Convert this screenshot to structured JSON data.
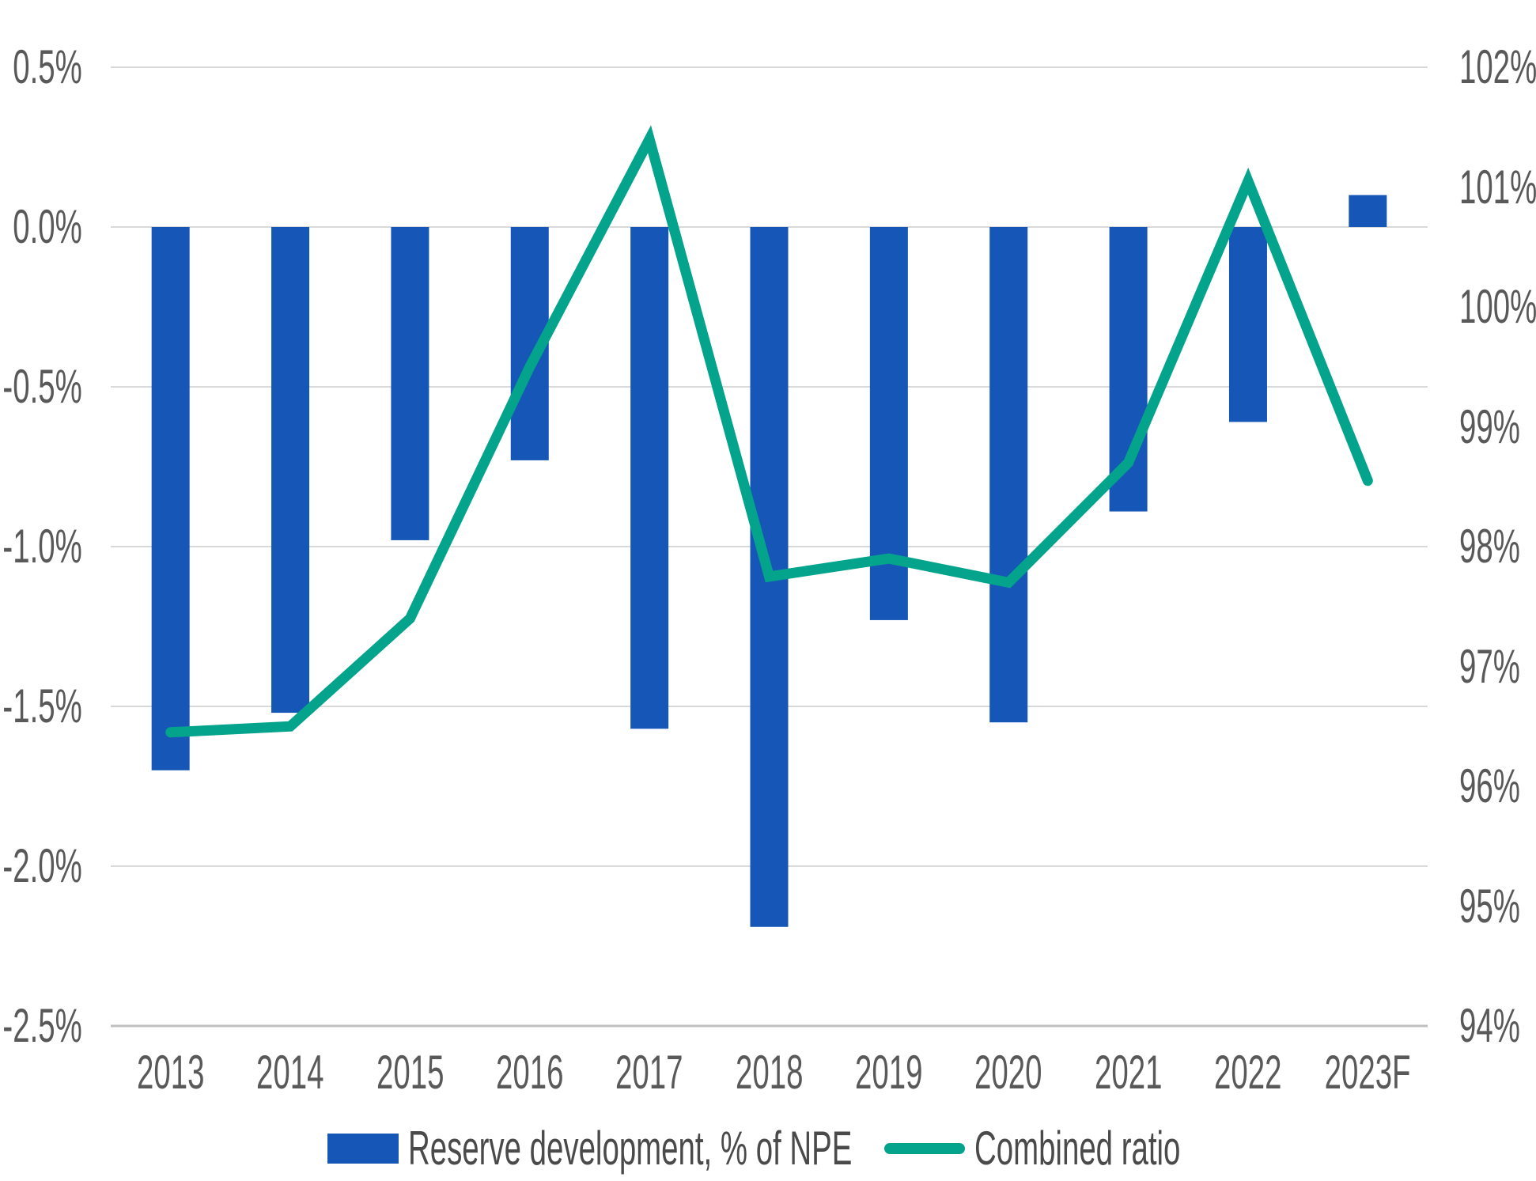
{
  "chart_data": {
    "type": "combo-bar-line",
    "categories": [
      "2013",
      "2014",
      "2015",
      "2016",
      "2017",
      "2018",
      "2019",
      "2020",
      "2021",
      "2022",
      "2023F"
    ],
    "series": [
      {
        "name": "Reserve development, % of NPE",
        "type": "bar",
        "axis": "left",
        "color": "#1656B7",
        "values": [
          -1.7,
          -1.52,
          -0.98,
          -0.73,
          -1.57,
          -2.19,
          -1.23,
          -1.55,
          -0.89,
          -0.61,
          0.1
        ]
      },
      {
        "name": "Combined ratio",
        "type": "line",
        "axis": "right",
        "color": "#04A38B",
        "values": [
          96.45,
          96.5,
          97.4,
          99.5,
          101.4,
          97.75,
          97.9,
          97.7,
          98.7,
          101.05,
          98.55
        ]
      }
    ],
    "left_axis": {
      "min": -2.5,
      "max": 0.5,
      "step": 0.5,
      "tick_labels": [
        "0.5%",
        "0.0%",
        "-0.5%",
        "-1.0%",
        "-1.5%",
        "-2.0%",
        "-2.5%"
      ],
      "tick_values": [
        0.5,
        0.0,
        -0.5,
        -1.0,
        -1.5,
        -2.0,
        -2.5
      ]
    },
    "right_axis": {
      "min": 94,
      "max": 102,
      "step": 1,
      "tick_labels": [
        "102%",
        "101%",
        "100%",
        "99%",
        "98%",
        "97%",
        "96%",
        "95%",
        "94%"
      ],
      "tick_values": [
        102,
        101,
        100,
        99,
        98,
        97,
        96,
        95,
        94
      ]
    },
    "grid": "horizontal",
    "legend_position": "bottom"
  },
  "legend": {
    "bar_label": "Reserve development, % of NPE",
    "line_label": "Combined ratio"
  },
  "colors": {
    "bar": "#1656B7",
    "line": "#04A38B",
    "grid": "#D9D9D9",
    "axis_line": "#BFBFBF",
    "tick_text": "#595959",
    "legend_text": "#4a4a4a",
    "background": "#FFFFFF"
  }
}
